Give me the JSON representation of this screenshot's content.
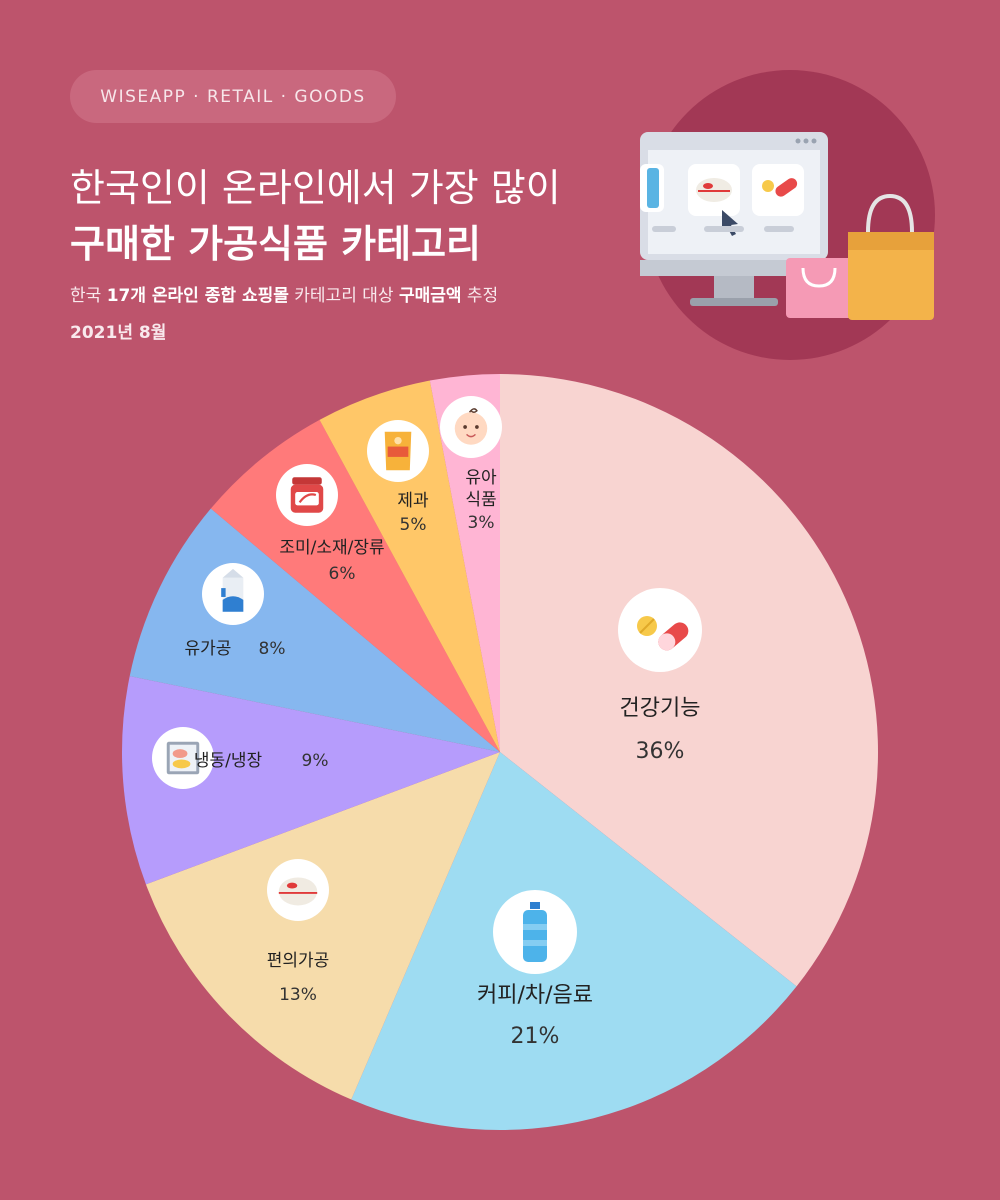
{
  "header": {
    "tag": "WISEAPP · RETAIL · GOODS",
    "title_line1": "한국인이 온라인에서 가장 많이",
    "title_line2": "구매한 가공식품 카테고리",
    "subtitle_parts": [
      {
        "text": "한국 ",
        "bold": false
      },
      {
        "text": "17개 온라인 종합 쇼핑몰",
        "bold": true
      },
      {
        "text": " 카테고리 대상 ",
        "bold": false
      },
      {
        "text": "구매금액",
        "bold": true
      },
      {
        "text": " 추정",
        "bold": false
      }
    ],
    "date": "2021년 8월"
  },
  "colors": {
    "background": "#bd546c",
    "pill": "#c9687e"
  },
  "chart_data": {
    "type": "pie",
    "start": "12 o'clock",
    "direction": "clockwise",
    "unit": "%",
    "slices": [
      {
        "label": "건강기능",
        "value": 36,
        "display": "36%",
        "color": "#f8d4d1",
        "icon": "pill-capsule-icon",
        "label_style": "stacked-large"
      },
      {
        "label": "커피/차/음료",
        "value": 21,
        "display": "21%",
        "color": "#9edcf2",
        "icon": "water-bottle-icon",
        "label_style": "stacked-large"
      },
      {
        "label": "편의가공",
        "value": 13,
        "display": "13%",
        "color": "#f6dcab",
        "icon": "rice-bowl-icon",
        "label_style": "stacked"
      },
      {
        "label": "냉동/냉장",
        "value": 9,
        "display": "9%",
        "color": "#b69cfc",
        "icon": "frozen-food-icon",
        "label_style": "inline"
      },
      {
        "label": "유가공",
        "value": 8,
        "display": "8%",
        "color": "#86b7ef",
        "icon": "milk-carton-icon",
        "label_style": "inline"
      },
      {
        "label": "조미/소재/장류",
        "value": 6,
        "display": "6%",
        "color": "#ff7a7a",
        "icon": "sauce-jar-icon",
        "label_style": "stacked"
      },
      {
        "label": "제과",
        "value": 5,
        "display": "5%",
        "color": "#ffc768",
        "icon": "snack-bag-icon",
        "label_style": "stacked"
      },
      {
        "label": "유아\n식품",
        "value": 3,
        "display": "3%",
        "color": "#ffb5d4",
        "icon": "baby-face-icon",
        "label_style": "stacked"
      }
    ]
  }
}
